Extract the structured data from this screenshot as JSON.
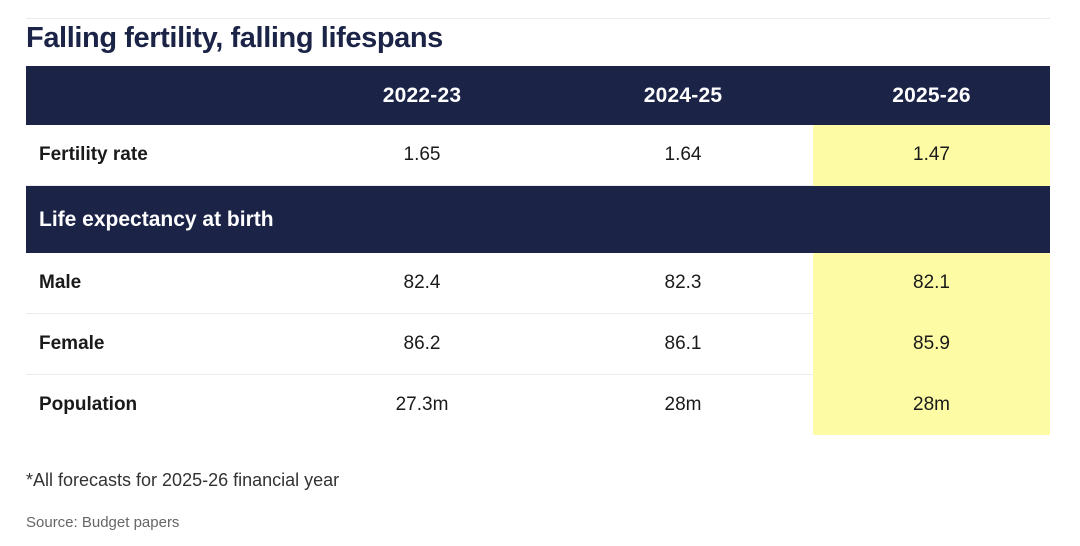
{
  "title": "Falling fertility, falling lifespans",
  "chart_data": {
    "type": "table",
    "title": "Falling fertility, falling lifespans",
    "columns": [
      "",
      "2022-23",
      "2024-25",
      "2025-26"
    ],
    "highlight_column": "2025-26",
    "highlight_color": "#fdfba4",
    "header_color": "#1b2347",
    "rows": [
      {
        "label": "Fertility rate",
        "values": [
          "1.65",
          "1.64",
          "1.47"
        ]
      },
      {
        "section": "Life expectancy at birth"
      },
      {
        "label": "Male",
        "values": [
          "82.4",
          "82.3",
          "82.1"
        ]
      },
      {
        "label": "Female",
        "values": [
          "86.2",
          "86.1",
          "85.9"
        ]
      },
      {
        "label": "Population",
        "values": [
          "27.3m",
          "28m",
          "28m"
        ]
      }
    ]
  },
  "footnote": "*All forecasts for 2025-26 financial year",
  "source": "Source: Budget papers"
}
